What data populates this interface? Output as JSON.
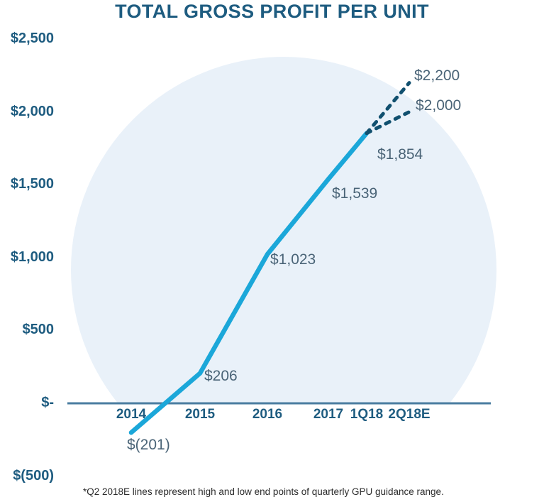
{
  "chart_data": {
    "type": "line",
    "title": "TOTAL GROSS PROFIT PER UNIT",
    "xlabel": "",
    "ylabel": "",
    "ylim": [
      -500,
      2500
    ],
    "grid": false,
    "legend": false,
    "categories": [
      "2014",
      "2015",
      "2016",
      "2017",
      "1Q18",
      "2Q18E"
    ],
    "y_ticks": [
      {
        "label": "$2,500",
        "value": 2500
      },
      {
        "label": "$2,000",
        "value": 2000
      },
      {
        "label": "$1,500",
        "value": 1500
      },
      {
        "label": "$1,000",
        "value": 1000
      },
      {
        "label": "$500",
        "value": 500
      },
      {
        "label": "$-",
        "value": 0
      },
      {
        "label": "$(500)",
        "value": -500
      }
    ],
    "series": [
      {
        "name": "total-gpu",
        "style": "solid",
        "points": [
          {
            "category": "2014",
            "value": -201,
            "label": "$(201)"
          },
          {
            "category": "2015",
            "value": 206,
            "label": "$206"
          },
          {
            "category": "2016",
            "value": 1023,
            "label": "$1,023"
          },
          {
            "category": "2017",
            "value": 1539,
            "label": "$1,539"
          },
          {
            "category": "1Q18",
            "value": 1854,
            "label": "$1,854"
          }
        ]
      },
      {
        "name": "guidance-high",
        "style": "dashed",
        "points": [
          {
            "category": "1Q18",
            "value": 1854
          },
          {
            "category": "2Q18E",
            "value": 2200,
            "label": "$2,200"
          }
        ]
      },
      {
        "name": "guidance-low",
        "style": "dashed",
        "points": [
          {
            "category": "1Q18",
            "value": 1854
          },
          {
            "category": "2Q18E",
            "value": 2000,
            "label": "$2,000"
          }
        ]
      }
    ],
    "colors": {
      "solid_line": "#1ba7d9",
      "dashed_line": "#11506f",
      "axis_text": "#1e5c80",
      "data_label": "#4a6477",
      "axis_line": "#4a7da0",
      "circle_fill": "#e9f1f9",
      "footnote_text": "#2b2b2b"
    },
    "footnote": "*Q2 2018E lines represent high and low end points of quarterly GPU guidance range."
  }
}
